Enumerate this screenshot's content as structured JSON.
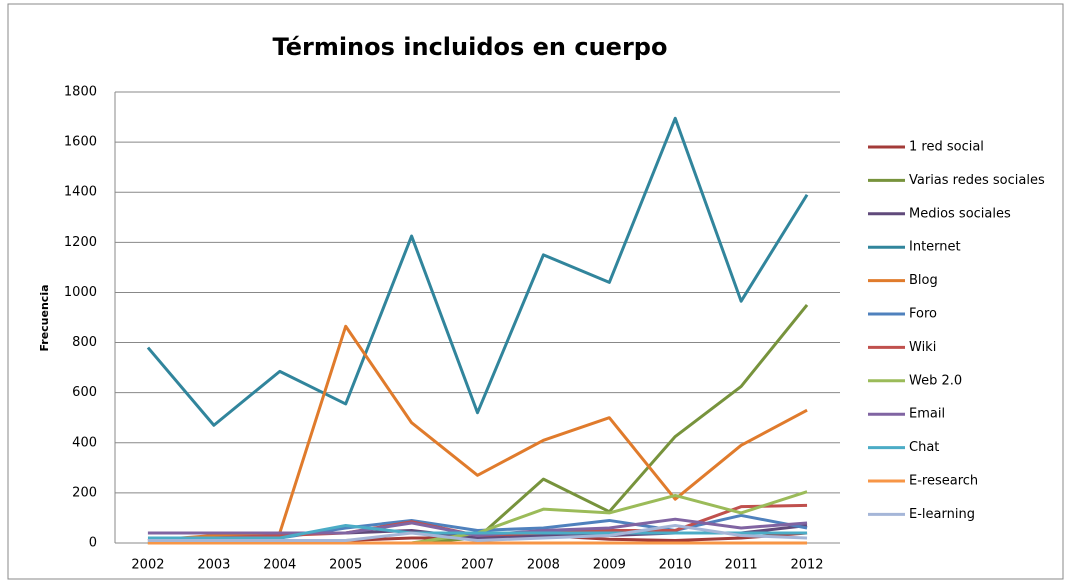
{
  "chart_data": {
    "type": "line",
    "title": "Términos incluidos en cuerpo",
    "y_label": "Frecuencia",
    "categories": [
      "2002",
      "2003",
      "2004",
      "2005",
      "2006",
      "2007",
      "2008",
      "2009",
      "2010",
      "2011",
      "2012"
    ],
    "ylim": [
      0,
      1800
    ],
    "yticks": [
      0,
      200,
      400,
      600,
      800,
      1000,
      1200,
      1400,
      1600,
      1800
    ],
    "grid": true,
    "legend": "right",
    "series": [
      {
        "name": "1 red social",
        "color": "#a33b38",
        "values": [
          0,
          0,
          0,
          10,
          20,
          20,
          30,
          15,
          10,
          20,
          40
        ]
      },
      {
        "name": "Varias redes sociales",
        "color": "#77933c",
        "values": [
          0,
          0,
          0,
          0,
          0,
          20,
          255,
          125,
          425,
          625,
          950
        ]
      },
      {
        "name": "Medios sociales",
        "color": "#604a7b",
        "values": [
          40,
          40,
          40,
          40,
          50,
          20,
          30,
          30,
          40,
          40,
          70
        ]
      },
      {
        "name": "Internet",
        "color": "#31859c",
        "values": [
          780,
          470,
          685,
          555,
          1225,
          520,
          1150,
          1040,
          1695,
          965,
          1390
        ]
      },
      {
        "name": "Blog",
        "color": "#e07b2c",
        "values": [
          10,
          30,
          40,
          865,
          480,
          270,
          410,
          500,
          175,
          390,
          530
        ]
      },
      {
        "name": "Foro",
        "color": "#4f81bd",
        "values": [
          10,
          10,
          20,
          60,
          90,
          50,
          60,
          90,
          50,
          110,
          60
        ]
      },
      {
        "name": "Wiki",
        "color": "#c0504d",
        "values": [
          10,
          20,
          30,
          40,
          85,
          30,
          40,
          50,
          50,
          145,
          150
        ]
      },
      {
        "name": "Web 2.0",
        "color": "#9bbb59",
        "values": [
          0,
          0,
          0,
          0,
          0,
          40,
          135,
          120,
          190,
          120,
          205
        ]
      },
      {
        "name": "Email",
        "color": "#8064a2",
        "values": [
          40,
          40,
          40,
          40,
          80,
          30,
          50,
          60,
          95,
          60,
          80
        ]
      },
      {
        "name": "Chat",
        "color": "#4bacc6",
        "values": [
          20,
          20,
          20,
          70,
          40,
          40,
          40,
          40,
          40,
          40,
          40
        ]
      },
      {
        "name": "E-research",
        "color": "#f79646",
        "values": [
          0,
          0,
          0,
          0,
          0,
          0,
          0,
          0,
          0,
          0,
          0
        ]
      },
      {
        "name": "E-learning",
        "color": "#a5b6d8",
        "values": [
          10,
          10,
          10,
          10,
          40,
          10,
          20,
          30,
          70,
          30,
          20
        ]
      }
    ]
  }
}
